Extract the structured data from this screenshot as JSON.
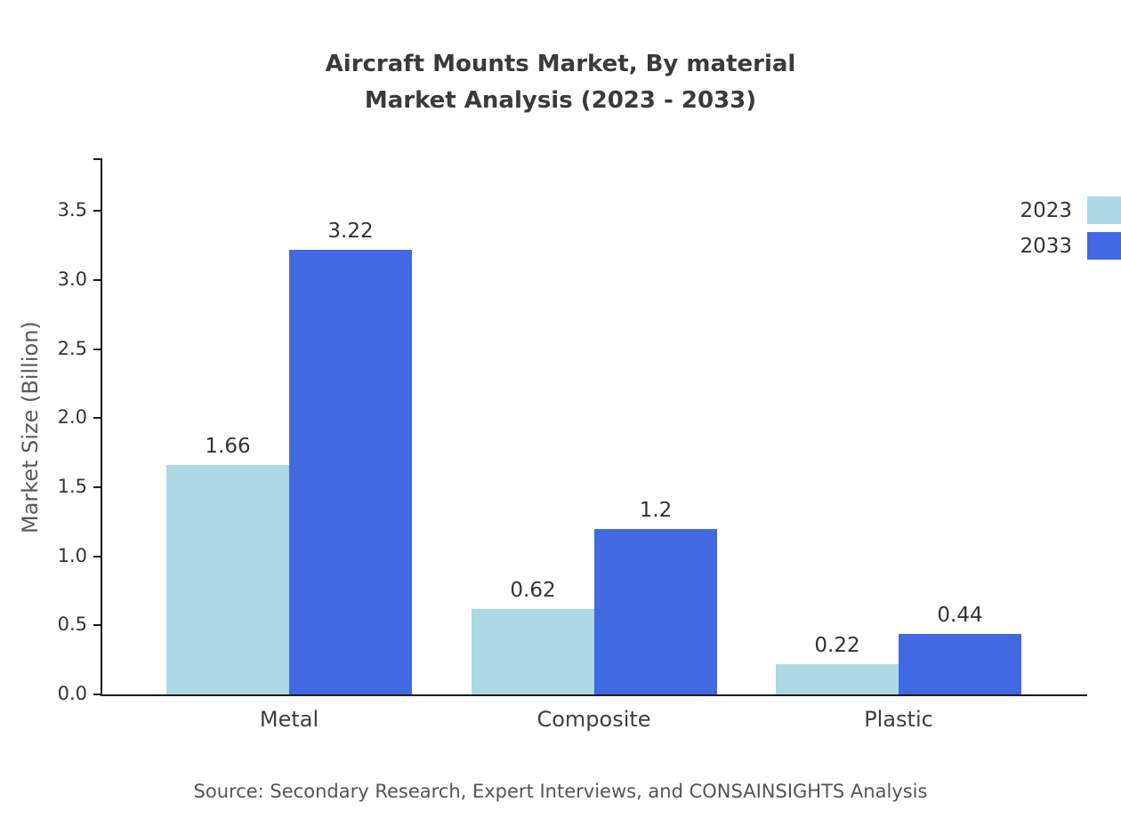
{
  "title": {
    "line1": "Aircraft Mounts Market, By material",
    "line2": "Market Analysis (2023 - 2033)"
  },
  "source": "Source: Secondary Research, Expert Interviews, and CONSAINSIGHTS Analysis",
  "chart_data": {
    "type": "bar",
    "title": "Aircraft Mounts Market, By material Market Analysis (2023 - 2033)",
    "categories": [
      "Metal",
      "Composite",
      "Plastic"
    ],
    "series": [
      {
        "name": "2023",
        "color": "#add8e6",
        "values": [
          1.66,
          0.62,
          0.22
        ]
      },
      {
        "name": "2033",
        "color": "#4169e1",
        "values": [
          3.22,
          1.2,
          0.44
        ]
      }
    ],
    "xlabel": "",
    "ylabel": "Market Size (Billion)",
    "ylim": [
      0,
      3.87
    ],
    "yticks": [
      0.0,
      0.5,
      1.0,
      1.5,
      2.0,
      2.5,
      3.0,
      3.5
    ],
    "grid": false,
    "legend_position": "upper right"
  }
}
